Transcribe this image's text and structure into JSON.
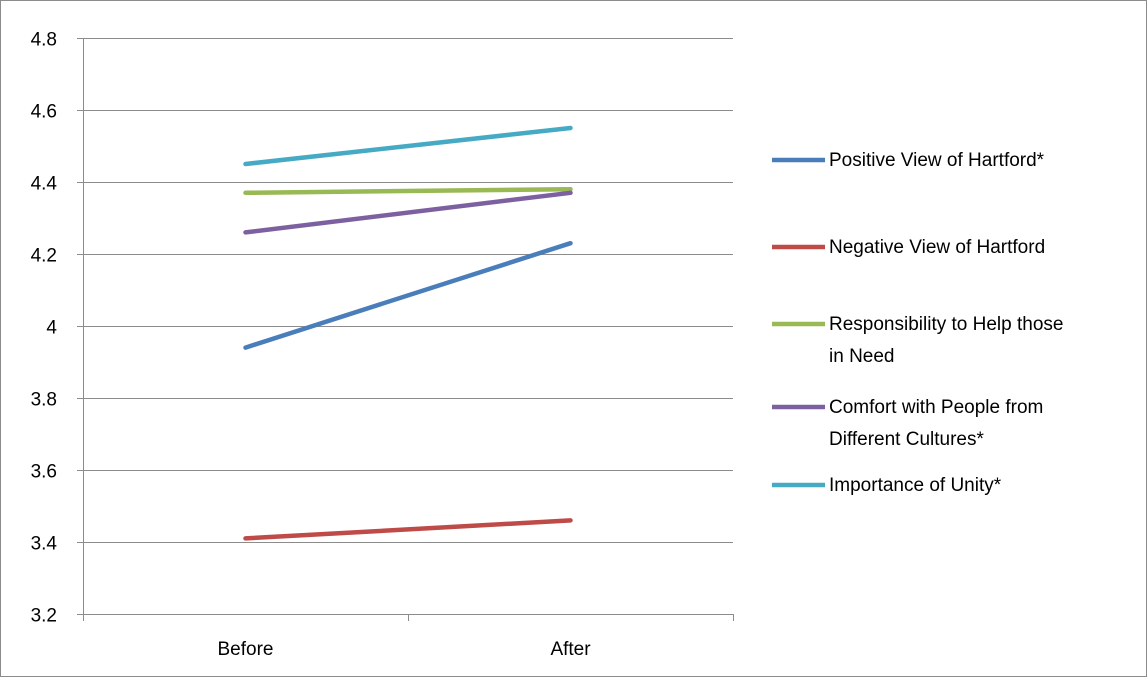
{
  "chart_data": {
    "type": "line",
    "categories": [
      "Before",
      "After"
    ],
    "ylim": [
      3.2,
      4.8
    ],
    "y_ticks": [
      "3.2",
      "3.4",
      "3.6",
      "3.8",
      "4",
      "4.2",
      "4.4",
      "4.6",
      "4.8"
    ],
    "y_tick_values": [
      3.2,
      3.4,
      3.6,
      3.8,
      4.0,
      4.2,
      4.4,
      4.6,
      4.8
    ],
    "grid": true,
    "legend_position": "right",
    "series": [
      {
        "name": "Positive View of Hartford*",
        "legend_lines": [
          "Positive View of Hartford*"
        ],
        "values": [
          3.94,
          4.23
        ],
        "color": "#4a7ebb"
      },
      {
        "name": "Negative View of Hartford",
        "legend_lines": [
          "Negative View of Hartford"
        ],
        "values": [
          3.41,
          3.46
        ],
        "color": "#be4b48"
      },
      {
        "name": "Responsibility to Help those in Need",
        "legend_lines": [
          "Responsibility to Help those",
          "in Need"
        ],
        "values": [
          4.37,
          4.38
        ],
        "color": "#98b954"
      },
      {
        "name": "Comfort with People from Different Cultures*",
        "legend_lines": [
          "Comfort with People from",
          "Different Cultures*"
        ],
        "values": [
          4.26,
          4.37
        ],
        "color": "#7d60a0"
      },
      {
        "name": "Importance of Unity*",
        "legend_lines": [
          "Importance of Unity*"
        ],
        "values": [
          4.45,
          4.55
        ],
        "color": "#46aac5"
      }
    ]
  }
}
